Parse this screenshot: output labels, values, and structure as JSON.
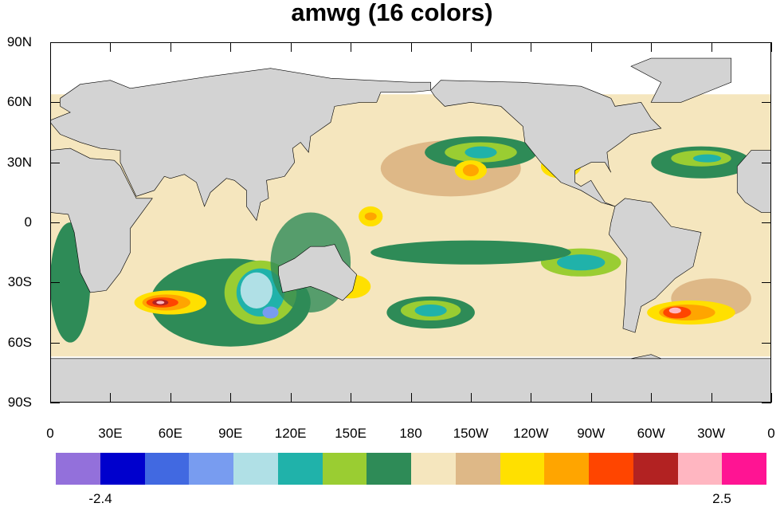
{
  "title": "amwg (16 colors)",
  "lat_labels": [
    "90N",
    "60N",
    "30N",
    "0",
    "30S",
    "60S",
    "90S"
  ],
  "lon_labels": [
    "0",
    "30E",
    "60E",
    "90E",
    "120E",
    "150E",
    "180",
    "150W",
    "120W",
    "90W",
    "60W",
    "30W",
    "0"
  ],
  "colorbar": {
    "colors": [
      "#9370DB",
      "#0000CD",
      "#4169E1",
      "#789CF0",
      "#B0E0E6",
      "#20B2AA",
      "#9ACD32",
      "#2E8B57",
      "#F5E6BE",
      "#DEB887",
      "#FFE000",
      "#FFA500",
      "#FF4500",
      "#B22222",
      "#FFB6C1",
      "#FF1493"
    ],
    "labels": [
      "-2.4",
      "2.5"
    ]
  },
  "land_color": "#D3D3D3",
  "missing_color": "#FFFFFF"
}
